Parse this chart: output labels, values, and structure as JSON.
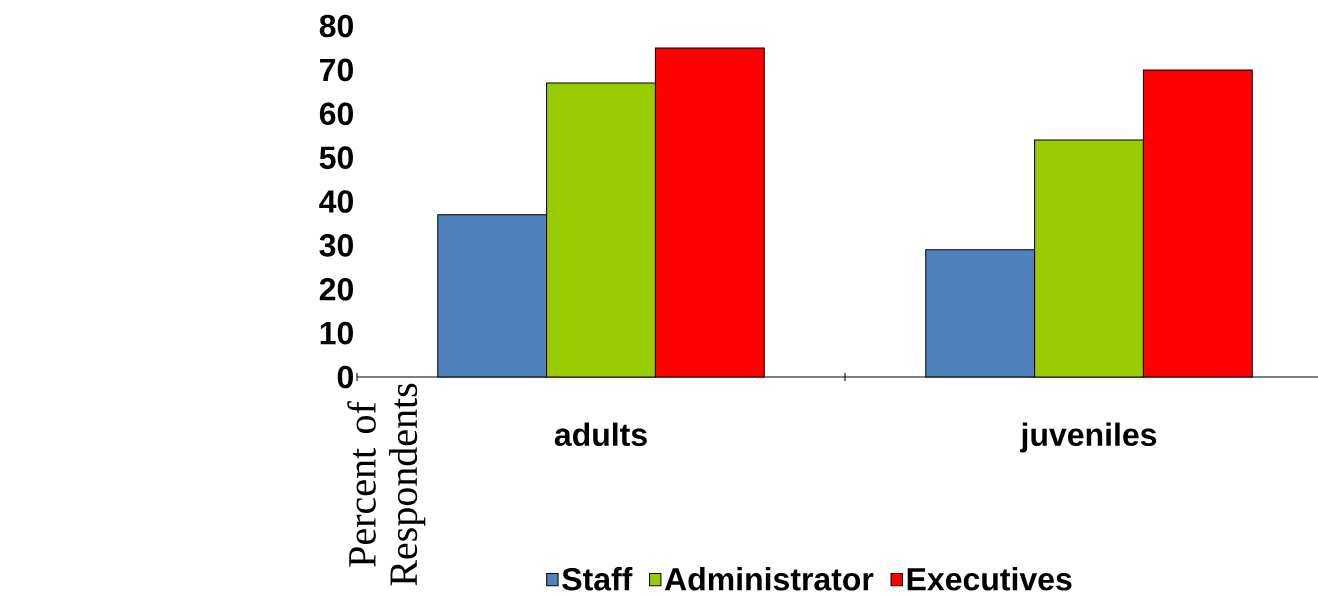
{
  "chart_data": {
    "type": "bar",
    "ylabel": "Percent of Respondents",
    "categories": [
      "adults",
      "juveniles"
    ],
    "series": [
      {
        "name": "Staff",
        "color": "#4f81bd",
        "values": [
          37,
          29
        ]
      },
      {
        "name": "Administrator",
        "color": "#99cc00",
        "values": [
          67,
          54
        ]
      },
      {
        "name": "Executives",
        "color": "#ff0000",
        "values": [
          75,
          70
        ]
      }
    ],
    "ylim": [
      0,
      80
    ],
    "yticks": [
      0,
      10,
      20,
      30,
      40,
      50,
      60,
      70,
      80
    ],
    "grid": false,
    "legend": "bottom"
  }
}
